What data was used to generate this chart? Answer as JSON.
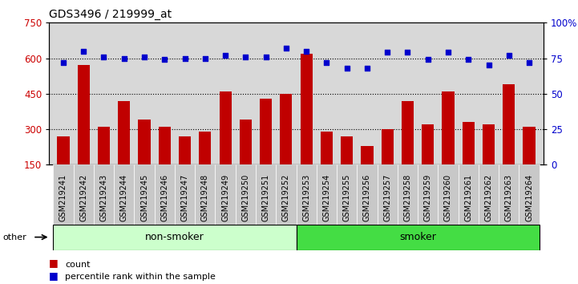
{
  "title": "GDS3496 / 219999_at",
  "categories": [
    "GSM219241",
    "GSM219242",
    "GSM219243",
    "GSM219244",
    "GSM219245",
    "GSM219246",
    "GSM219247",
    "GSM219248",
    "GSM219249",
    "GSM219250",
    "GSM219251",
    "GSM219252",
    "GSM219253",
    "GSM219254",
    "GSM219255",
    "GSM219256",
    "GSM219257",
    "GSM219258",
    "GSM219259",
    "GSM219260",
    "GSM219261",
    "GSM219262",
    "GSM219263",
    "GSM219264"
  ],
  "bar_values": [
    270,
    570,
    310,
    420,
    340,
    310,
    270,
    290,
    460,
    340,
    430,
    450,
    620,
    290,
    270,
    230,
    300,
    420,
    320,
    460,
    330,
    320,
    490,
    310
  ],
  "percentile_values": [
    72,
    80,
    76,
    75,
    76,
    74,
    75,
    75,
    77,
    76,
    76,
    82,
    80,
    72,
    68,
    68,
    79,
    79,
    74,
    79,
    74,
    70,
    77,
    72
  ],
  "bar_color": "#C00000",
  "percentile_color": "#0000CC",
  "ylim_left": [
    150,
    750
  ],
  "ylim_right": [
    0,
    100
  ],
  "yticks_left": [
    150,
    300,
    450,
    600,
    750
  ],
  "yticks_right": [
    0,
    25,
    50,
    75,
    100
  ],
  "grid_values": [
    300,
    450,
    600
  ],
  "non_smoker_count": 12,
  "smoker_count": 12,
  "group_colors": [
    "#ccffcc",
    "#44dd44"
  ],
  "other_label": "other",
  "legend_bar_label": "count",
  "legend_dot_label": "percentile rank within the sample",
  "plot_bg": "#d8d8d8",
  "title_fontsize": 10,
  "tick_fontsize": 7,
  "axis_label_color_left": "#CC0000",
  "axis_label_color_right": "#0000CC"
}
